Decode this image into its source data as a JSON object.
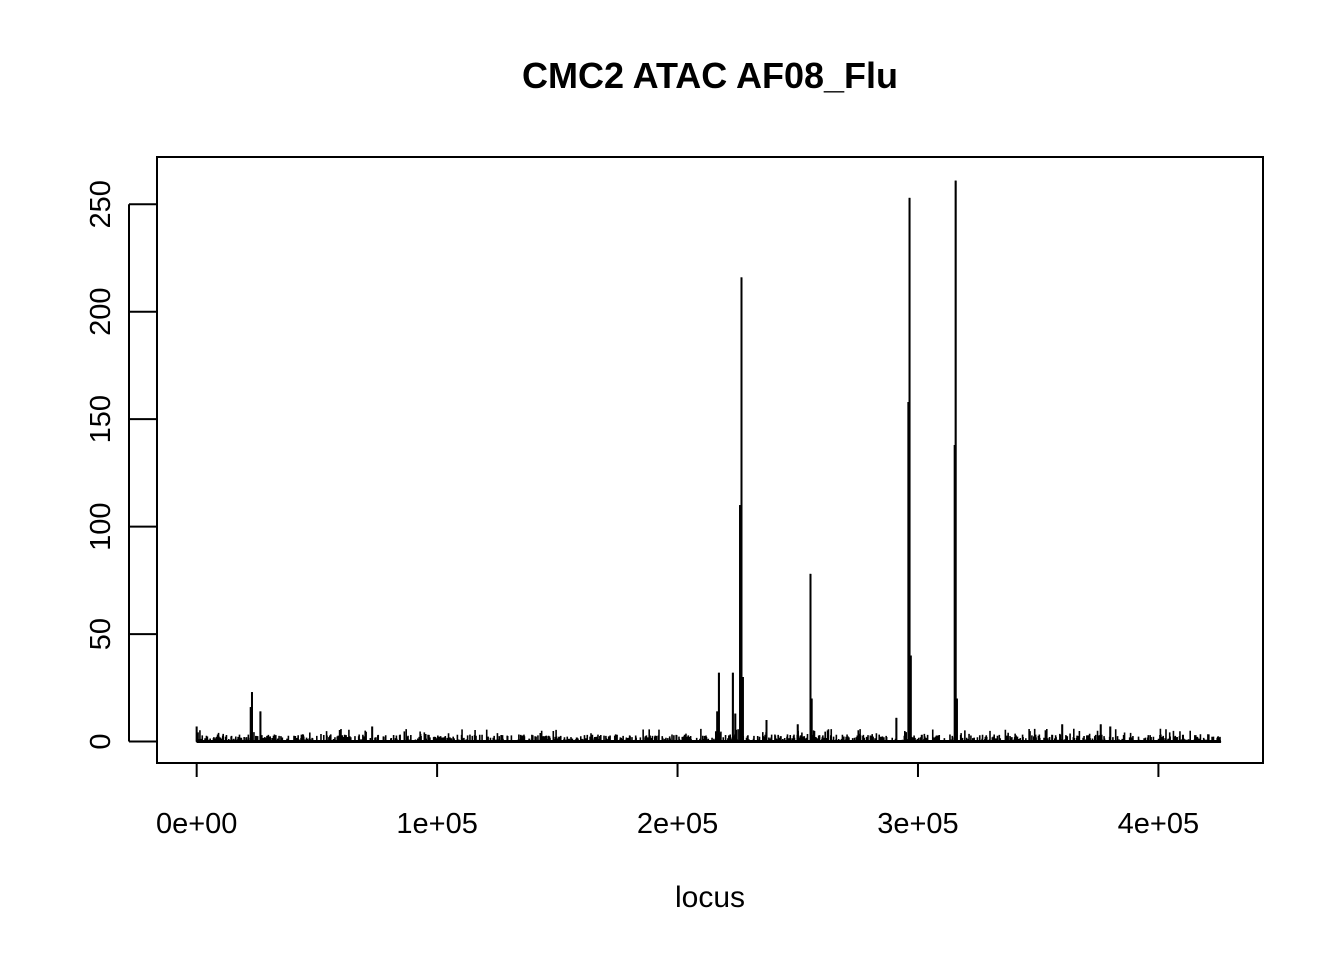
{
  "chart_data": {
    "type": "line",
    "title": "CMC2 ATAC AF08_Flu",
    "xlabel": "locus",
    "ylabel": "",
    "xlim": [
      -16500,
      443500
    ],
    "ylim": [
      -10,
      272
    ],
    "x_ticks": [
      0,
      100000,
      200000,
      300000,
      400000
    ],
    "x_tick_labels": [
      "0e+00",
      "1e+05",
      "2e+05",
      "3e+05",
      "4e+05"
    ],
    "y_ticks": [
      0,
      50,
      100,
      150,
      200,
      250
    ],
    "y_tick_labels": [
      "0",
      "50",
      "100",
      "150",
      "200",
      "250"
    ],
    "grid": false,
    "legend": "none",
    "line_color": "#000000",
    "x_range": [
      0,
      426000
    ],
    "baseline_noise_max": 6,
    "peaks": [
      {
        "x": 0,
        "y": 7
      },
      {
        "x": 23000,
        "y": 23
      },
      {
        "x": 22500,
        "y": 16
      },
      {
        "x": 26500,
        "y": 14
      },
      {
        "x": 73000,
        "y": 7
      },
      {
        "x": 217200,
        "y": 32
      },
      {
        "x": 216500,
        "y": 14
      },
      {
        "x": 223000,
        "y": 32
      },
      {
        "x": 224000,
        "y": 13
      },
      {
        "x": 226000,
        "y": 110
      },
      {
        "x": 226600,
        "y": 216
      },
      {
        "x": 227200,
        "y": 30
      },
      {
        "x": 237000,
        "y": 10
      },
      {
        "x": 250000,
        "y": 8
      },
      {
        "x": 255300,
        "y": 78
      },
      {
        "x": 255800,
        "y": 20
      },
      {
        "x": 291000,
        "y": 11
      },
      {
        "x": 296000,
        "y": 158
      },
      {
        "x": 296500,
        "y": 253
      },
      {
        "x": 297000,
        "y": 40
      },
      {
        "x": 315300,
        "y": 138
      },
      {
        "x": 315700,
        "y": 261
      },
      {
        "x": 316200,
        "y": 20
      },
      {
        "x": 360000,
        "y": 8
      },
      {
        "x": 376000,
        "y": 8
      },
      {
        "x": 380000,
        "y": 7
      }
    ]
  }
}
